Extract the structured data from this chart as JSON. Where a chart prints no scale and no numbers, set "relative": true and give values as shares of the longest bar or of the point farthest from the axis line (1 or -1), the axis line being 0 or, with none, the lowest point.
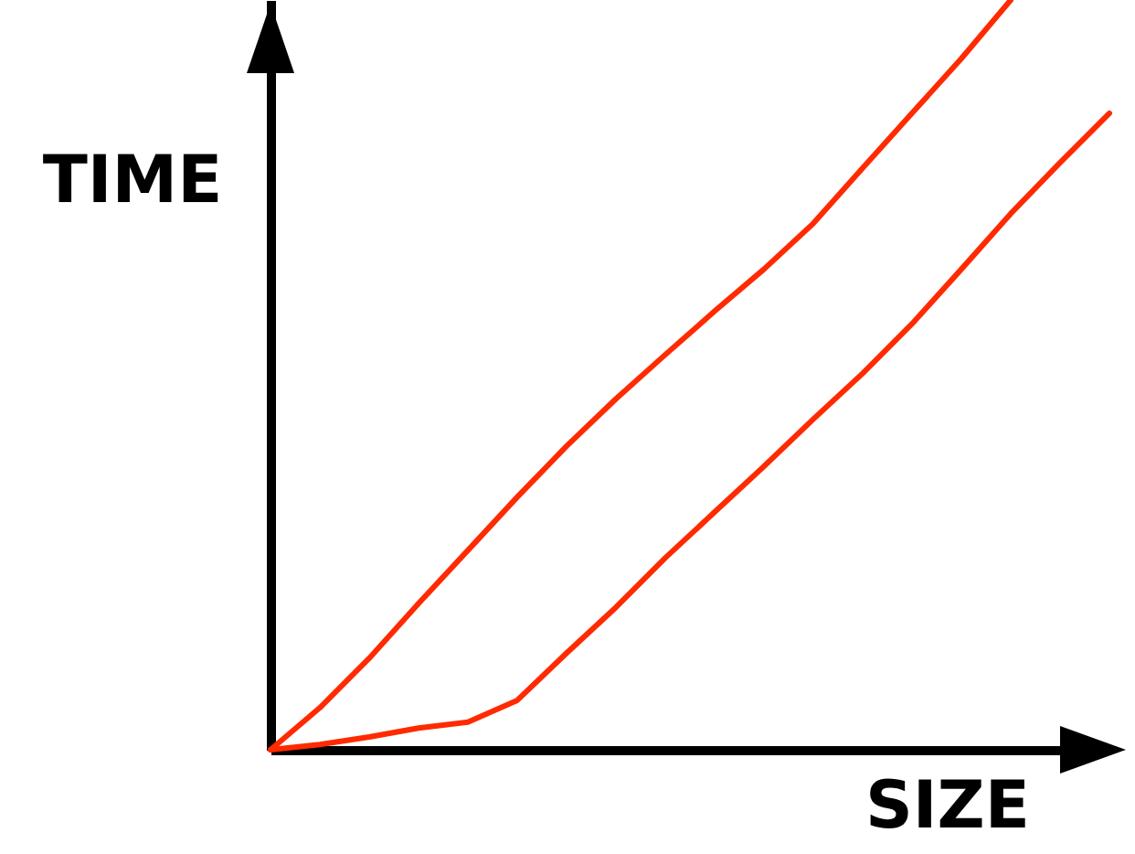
{
  "chart_data": {
    "type": "line",
    "relative": true,
    "xlabel": "SIZE",
    "ylabel": "TIME",
    "categories": [
      null,
      null,
      null,
      null,
      null,
      null,
      null,
      null,
      null,
      null,
      null,
      null,
      null,
      null,
      null,
      null,
      null,
      null
    ],
    "series": [
      {
        "color": "#ff2a00",
        "values": [
          0,
          0.056,
          0.122,
          0.195,
          0.266,
          0.337,
          0.405,
          0.468,
          0.527,
          0.585,
          0.641,
          0.702,
          0.776,
          0.849,
          0.922,
          1,
          null,
          null
        ]
      },
      {
        "color": "#ff2a00",
        "values": [
          0,
          0.007,
          0.017,
          0.029,
          0.037,
          0.066,
          0.129,
          0.19,
          0.256,
          0.317,
          0.378,
          0.441,
          0.502,
          0.568,
          0.641,
          0.715,
          0.783,
          0.849
        ]
      }
    ]
  }
}
